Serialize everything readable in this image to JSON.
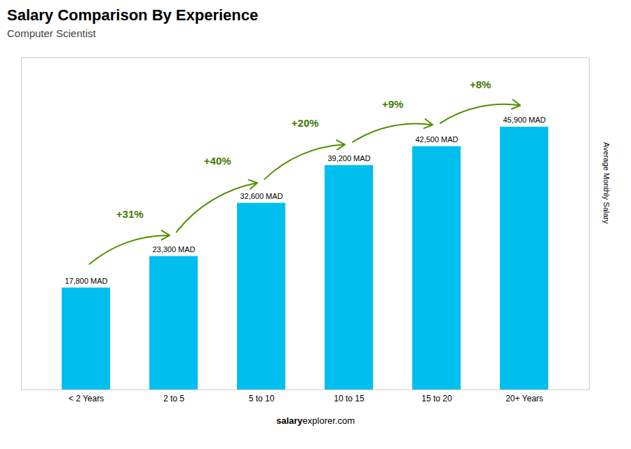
{
  "chart_data": {
    "type": "bar",
    "title": "Salary Comparison By Experience",
    "subtitle": "Computer Scientist",
    "ylabel": "Average Monthly Salary",
    "categories": [
      "< 2 Years",
      "2 to 5",
      "5 to 10",
      "10 to 15",
      "15 to 20",
      "20+ Years"
    ],
    "values": [
      17800,
      23300,
      32600,
      39200,
      42500,
      45900
    ],
    "value_labels": [
      "17,800 MAD",
      "23,300 MAD",
      "32,600 MAD",
      "39,200 MAD",
      "42,500 MAD",
      "45,900 MAD"
    ],
    "data_labels": true,
    "annotations": [
      "+31%",
      "+40%",
      "+20%",
      "+9%",
      "+8%"
    ],
    "footer": [
      "salary",
      "explorer.com"
    ],
    "color": "#00BFEF",
    "ylim": [
      0,
      58000
    ],
    "tick_labels": "x",
    "grid": false
  }
}
